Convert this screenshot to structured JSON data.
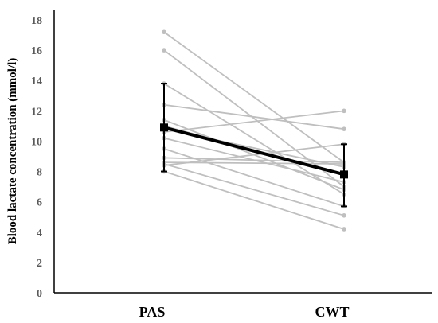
{
  "chart_data": {
    "type": "line",
    "title": "",
    "xlabel": "",
    "ylabel": "Blood lactate concentration (mmol/l)",
    "categories": [
      "PAS",
      "CWT"
    ],
    "ylim": [
      0,
      18
    ],
    "yticks": [
      "0",
      "2",
      "4",
      "6",
      "8",
      "10",
      "12",
      "14",
      "16",
      "18"
    ],
    "grid": false,
    "legend": "none",
    "individual_series": [
      {
        "values": [
          17.2,
          8.6
        ]
      },
      {
        "values": [
          16.0,
          7.0
        ]
      },
      {
        "values": [
          13.8,
          6.5
        ]
      },
      {
        "values": [
          12.4,
          10.8
        ]
      },
      {
        "values": [
          11.4,
          6.8
        ]
      },
      {
        "values": [
          11.0,
          7.8
        ]
      },
      {
        "values": [
          10.8,
          8.3
        ]
      },
      {
        "values": [
          10.6,
          12.0
        ]
      },
      {
        "values": [
          10.2,
          7.3
        ]
      },
      {
        "values": [
          9.5,
          5.7
        ]
      },
      {
        "values": [
          8.9,
          8.6
        ]
      },
      {
        "values": [
          8.6,
          8.5
        ]
      },
      {
        "values": [
          8.5,
          5.1
        ]
      },
      {
        "values": [
          8.4,
          9.8
        ]
      },
      {
        "values": [
          8.0,
          4.2
        ]
      }
    ],
    "mean_series": {
      "values": [
        10.9,
        7.8
      ],
      "error_low": [
        8.0,
        5.7
      ],
      "error_high": [
        13.8,
        9.8
      ]
    },
    "colors": {
      "individual": "#bfbfbf",
      "mean": "#000000",
      "axis": "#000000",
      "tick_text": "#595959"
    }
  }
}
